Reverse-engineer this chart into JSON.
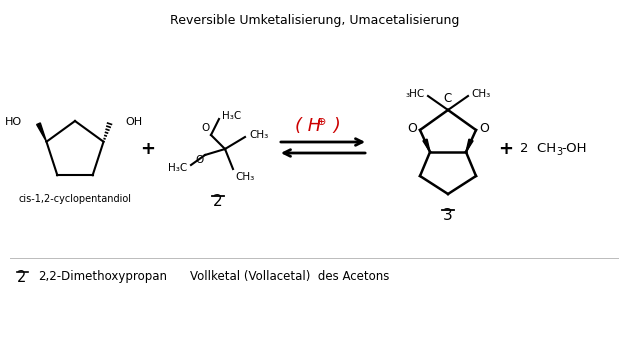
{
  "title": "Reversible Umketalisierung, Umacetalisierung",
  "bg_color": "#ffffff",
  "label_cis": "cis-1,2-cyclopentandiol",
  "label_2": "2",
  "label_3": "3",
  "footnote_2": "2",
  "footnote_text": "2,2-Dimethoxypropan",
  "footnote_text2": "Vollketal (Vollacetal)  des Acetons",
  "black": "#000000",
  "red": "#cc0000"
}
